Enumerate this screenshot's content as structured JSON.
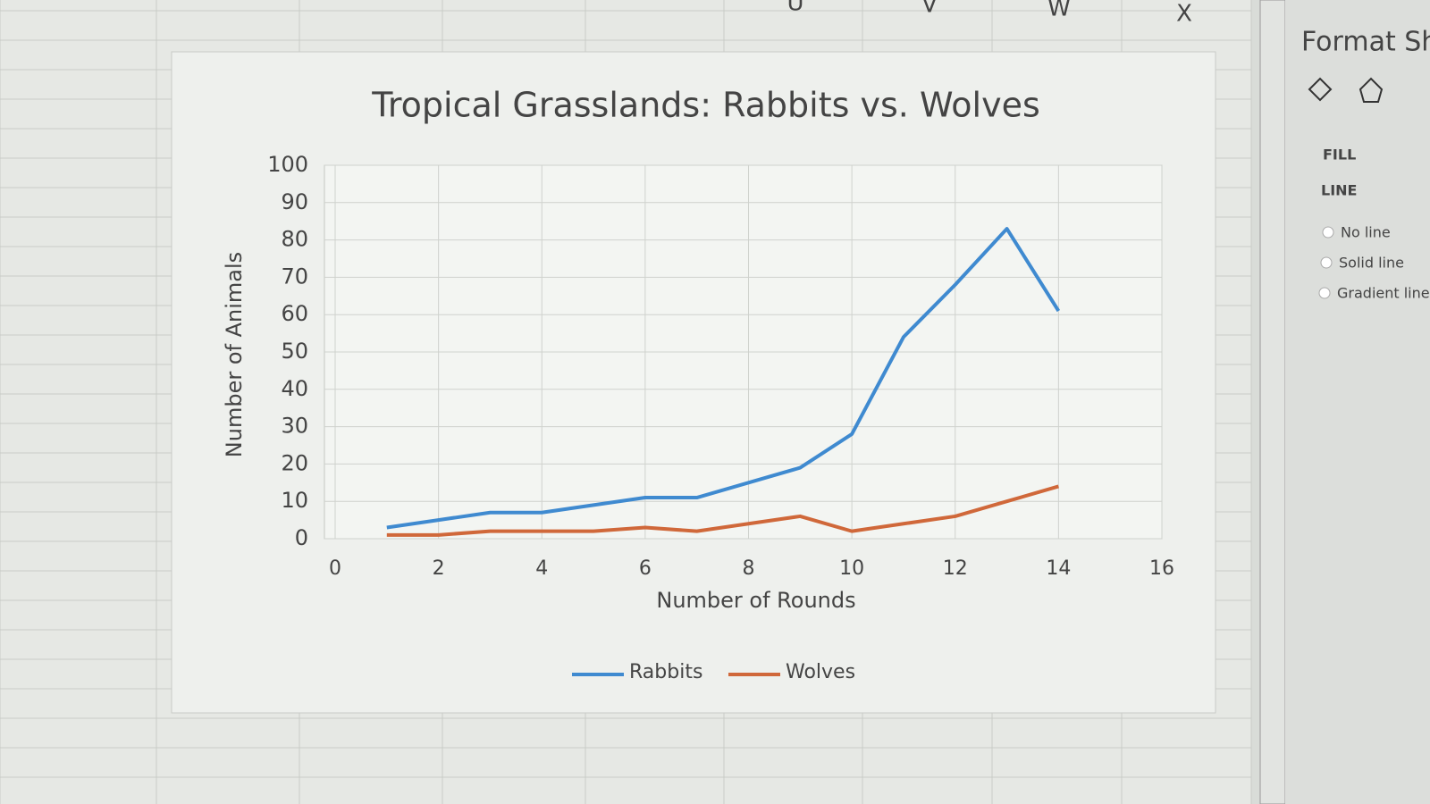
{
  "ui": {
    "columns": [
      "U",
      "V",
      "W",
      "X"
    ],
    "pane": {
      "title": "Format Shape",
      "sections": [
        "FILL",
        "LINE"
      ],
      "options": [
        "No line",
        "Solid line",
        "Gradient line"
      ]
    }
  },
  "chart_data": {
    "type": "line",
    "title": "Tropical Grasslands: Rabbits vs. Wolves",
    "xlabel": "Number of Rounds",
    "ylabel": "Number of Animals",
    "x": [
      1,
      2,
      3,
      4,
      5,
      6,
      7,
      8,
      9,
      10,
      11,
      12,
      13,
      14
    ],
    "series": [
      {
        "name": "Rabbits",
        "color": "#3f8ad0",
        "values": [
          3,
          5,
          7,
          7,
          9,
          11,
          11,
          15,
          19,
          28,
          54,
          68,
          83,
          61
        ]
      },
      {
        "name": "Wolves",
        "color": "#d0683a",
        "values": [
          1,
          1,
          2,
          2,
          2,
          3,
          2,
          4,
          6,
          2,
          4,
          6,
          10,
          14
        ]
      }
    ],
    "xlim": [
      0,
      16
    ],
    "xticks": [
      0,
      2,
      4,
      6,
      8,
      10,
      12,
      14,
      16
    ],
    "ylim": [
      0,
      100
    ],
    "yticks": [
      0,
      10,
      20,
      30,
      40,
      50,
      60,
      70,
      80,
      90,
      100
    ],
    "grid": true,
    "legend": "bottom"
  }
}
